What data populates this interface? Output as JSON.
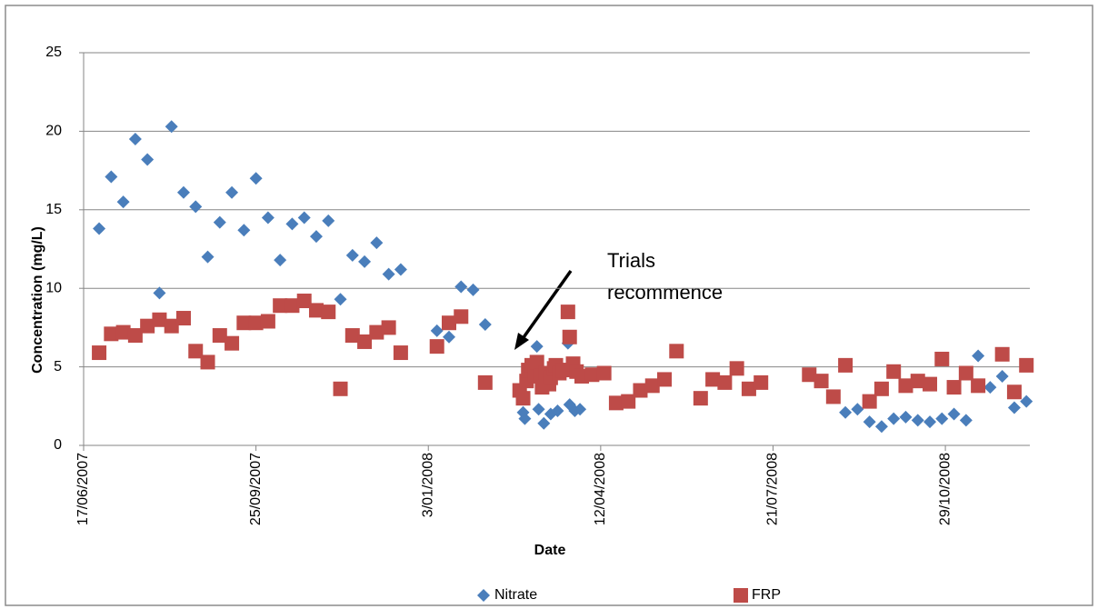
{
  "chart_data": {
    "type": "scatter",
    "x_label": "Date",
    "y_label": "Concentration (mg/L)",
    "annotation": [
      "Trials",
      "recommence"
    ],
    "xlim": [
      "2007-06-17",
      "2008-12-17"
    ],
    "xticks": [
      {
        "value": "2007-06-17",
        "label": "17/06/2007"
      },
      {
        "value": "2007-09-25",
        "label": "25/09/2007"
      },
      {
        "value": "2008-01-03",
        "label": "3/01/2008"
      },
      {
        "value": "2008-04-12",
        "label": "12/04/2008"
      },
      {
        "value": "2008-07-21",
        "label": "21/07/2008"
      },
      {
        "value": "2008-10-29",
        "label": "29/10/2008"
      }
    ],
    "ylim": [
      0,
      25
    ],
    "yticks": [
      0,
      5,
      10,
      15,
      20,
      25
    ],
    "grid": true,
    "legend": "bottom",
    "series": [
      {
        "name": "Nitrate",
        "color": "#4a7ebb",
        "marker": "diamond",
        "x": [
          "2007-06-26",
          "2007-07-03",
          "2007-07-10",
          "2007-07-17",
          "2007-07-24",
          "2007-07-31",
          "2007-08-07",
          "2007-08-14",
          "2007-08-21",
          "2007-08-28",
          "2007-09-04",
          "2007-09-11",
          "2007-09-18",
          "2007-09-25",
          "2007-10-02",
          "2007-10-09",
          "2007-10-16",
          "2007-10-23",
          "2007-10-30",
          "2007-11-06",
          "2007-11-13",
          "2007-11-20",
          "2007-11-27",
          "2007-12-04",
          "2007-12-11",
          "2007-12-18",
          "2008-01-08",
          "2008-01-15",
          "2008-01-22",
          "2008-01-29",
          "2008-02-05",
          "2008-02-27",
          "2008-02-28",
          "2008-03-06",
          "2008-03-07",
          "2008-03-10",
          "2008-03-14",
          "2008-03-18",
          "2008-03-24",
          "2008-03-25",
          "2008-03-28",
          "2008-03-31",
          "2008-09-01",
          "2008-09-08",
          "2008-09-15",
          "2008-09-22",
          "2008-09-29",
          "2008-10-06",
          "2008-10-13",
          "2008-10-20",
          "2008-10-27",
          "2008-11-03",
          "2008-11-10",
          "2008-11-17",
          "2008-11-24",
          "2008-12-01",
          "2008-12-08",
          "2008-12-15"
        ],
        "values": [
          13.8,
          17.1,
          15.5,
          19.5,
          18.2,
          9.7,
          20.3,
          16.1,
          15.2,
          12.0,
          14.2,
          16.1,
          13.7,
          17.0,
          14.5,
          11.8,
          14.1,
          14.5,
          13.3,
          14.3,
          9.3,
          12.1,
          11.7,
          12.9,
          10.9,
          11.2,
          7.3,
          6.9,
          10.1,
          9.9,
          7.7,
          2.1,
          1.7,
          6.3,
          2.3,
          1.4,
          2.0,
          2.2,
          6.5,
          2.6,
          2.2,
          2.3,
          2.1,
          2.3,
          1.5,
          1.2,
          1.7,
          1.8,
          1.6,
          1.5,
          1.7,
          2.0,
          1.6,
          5.7,
          3.7,
          4.4,
          2.4,
          2.8
        ]
      },
      {
        "name": "FRP",
        "color": "#be4b48",
        "marker": "square",
        "x": [
          "2007-06-26",
          "2007-07-03",
          "2007-07-10",
          "2007-07-17",
          "2007-07-24",
          "2007-07-31",
          "2007-08-07",
          "2007-08-14",
          "2007-08-21",
          "2007-08-28",
          "2007-09-04",
          "2007-09-11",
          "2007-09-18",
          "2007-09-25",
          "2007-10-02",
          "2007-10-09",
          "2007-10-16",
          "2007-10-23",
          "2007-10-30",
          "2007-11-06",
          "2007-11-13",
          "2007-11-20",
          "2007-11-27",
          "2007-12-04",
          "2007-12-11",
          "2007-12-18",
          "2008-01-08",
          "2008-01-15",
          "2008-01-22",
          "2008-02-05",
          "2008-02-25",
          "2008-02-27",
          "2008-02-29",
          "2008-03-01",
          "2008-03-03",
          "2008-03-05",
          "2008-03-06",
          "2008-03-08",
          "2008-03-09",
          "2008-03-11",
          "2008-03-13",
          "2008-03-14",
          "2008-03-16",
          "2008-03-17",
          "2008-03-19",
          "2008-03-21",
          "2008-03-24",
          "2008-03-25",
          "2008-03-27",
          "2008-03-29",
          "2008-04-01",
          "2008-04-07",
          "2008-04-14",
          "2008-04-21",
          "2008-04-28",
          "2008-05-05",
          "2008-05-12",
          "2008-05-19",
          "2008-05-26",
          "2008-06-09",
          "2008-06-16",
          "2008-06-23",
          "2008-06-30",
          "2008-07-07",
          "2008-07-14",
          "2008-08-11",
          "2008-08-18",
          "2008-08-25",
          "2008-09-01",
          "2008-09-15",
          "2008-09-22",
          "2008-09-29",
          "2008-10-06",
          "2008-10-13",
          "2008-10-20",
          "2008-10-27",
          "2008-11-03",
          "2008-11-10",
          "2008-11-17",
          "2008-12-01",
          "2008-12-08",
          "2008-12-15"
        ],
        "values": [
          5.9,
          7.1,
          7.2,
          7.0,
          7.6,
          8.0,
          7.6,
          8.1,
          6.0,
          5.3,
          7.0,
          6.5,
          7.8,
          7.8,
          7.9,
          8.9,
          8.9,
          9.2,
          8.6,
          8.5,
          3.6,
          7.0,
          6.6,
          7.2,
          7.5,
          5.9,
          6.3,
          7.8,
          8.2,
          4.0,
          3.5,
          3.0,
          4.1,
          4.8,
          5.1,
          4.5,
          5.3,
          4.4,
          3.7,
          4.6,
          3.9,
          4.3,
          4.9,
          5.1,
          4.6,
          4.8,
          8.5,
          6.9,
          5.2,
          4.7,
          4.4,
          4.5,
          4.6,
          2.7,
          2.8,
          3.5,
          3.8,
          4.2,
          6.0,
          3.0,
          4.2,
          4.0,
          4.9,
          3.6,
          4.0,
          4.5,
          4.1,
          3.1,
          5.1,
          2.8,
          3.6,
          4.7,
          3.8,
          4.1,
          3.9,
          5.5,
          3.7,
          4.6,
          3.8,
          5.8,
          3.4,
          5.1
        ]
      }
    ]
  }
}
